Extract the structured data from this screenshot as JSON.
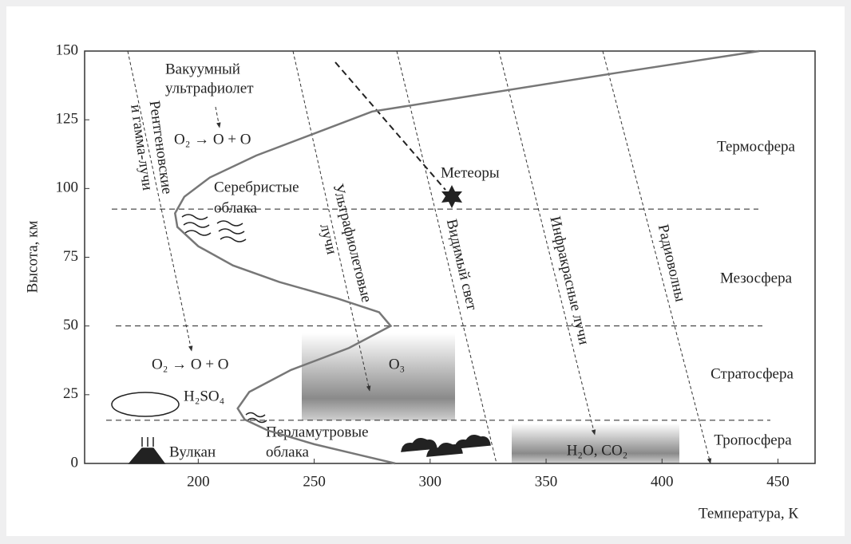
{
  "chart_data": {
    "type": "line",
    "x_label": "Температура, К",
    "y_label": "Высота, км",
    "xlim": [
      151,
      466
    ],
    "ylim": [
      0,
      150
    ],
    "xticks": [
      200,
      250,
      300,
      350,
      400,
      450
    ],
    "yticks": [
      0,
      25,
      50,
      75,
      100,
      125,
      150
    ],
    "layer_boundaries": [
      92.5,
      50,
      15.7
    ],
    "layers": [
      "Термосфера",
      "Мезосфера",
      "Стратосфера",
      "Тропосфера"
    ],
    "series": [
      {
        "color": "#777777",
        "x": [
          285,
          270,
          250,
          230,
          220,
          217,
          222,
          240,
          265,
          283,
          278,
          260,
          235,
          215,
          200,
          191,
          190,
          194,
          205,
          225,
          250,
          275,
          320,
          380,
          442
        ],
        "values": [
          0,
          3,
          7,
          12,
          16,
          20,
          26,
          34,
          42,
          50,
          55,
          60,
          66,
          72,
          79,
          86,
          91,
          97,
          104,
          112,
          120,
          128,
          134,
          142,
          150
        ]
      }
    ],
    "annotations": [
      "Вакуумный",
      "ультрафиолет",
      "O₂ → O + O",
      "Рентгеновские",
      "и гамма-лучи",
      "Серебристые",
      "облака",
      "Ультрафиолетовые",
      "лучи",
      "Метеоры",
      "Видимый свет",
      "Инфракрасные лучи",
      "Радиоволны",
      "O₂ → O + O",
      "H₂SO₄",
      "O₃",
      "Вулкан",
      "Перламутровые",
      "облака",
      "H₂O, CO₂"
    ]
  }
}
